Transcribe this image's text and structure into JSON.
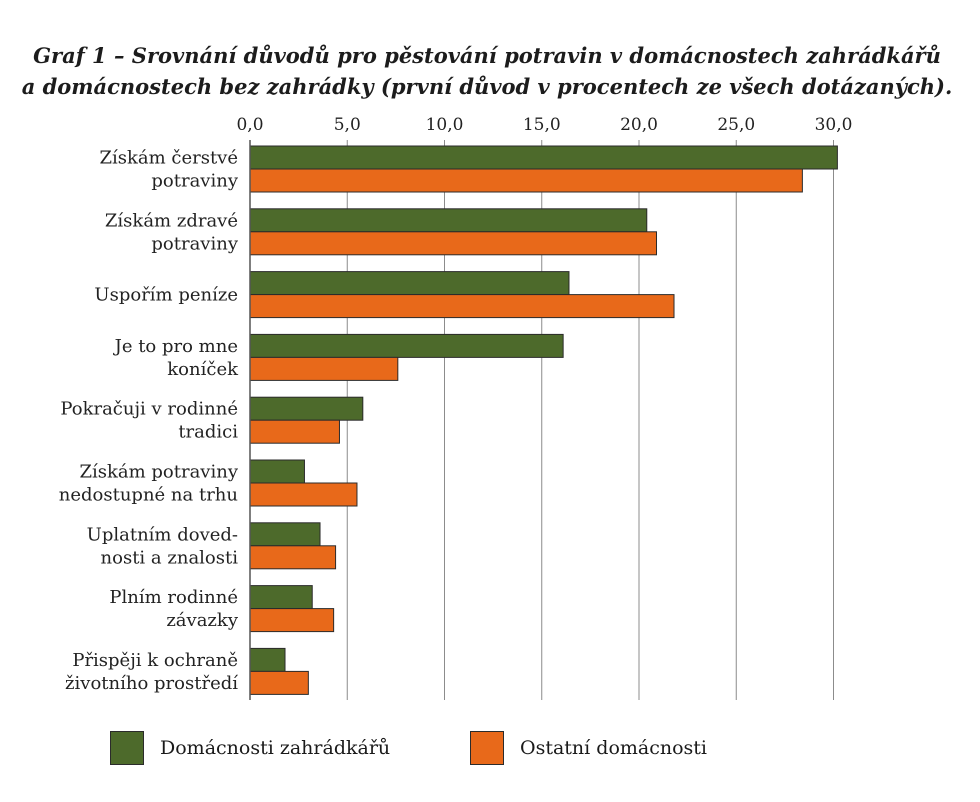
{
  "title": {
    "line1": "Graf 1 – Srovnání důvodů pro pěstování potravin v domácnostech zahrádkářů",
    "line2": "a domácnostech bez zahrádky (první důvod v procentech ze všech dotázaných)."
  },
  "colors": {
    "series1": "#4d6a2b",
    "series2": "#e8691a",
    "grid": "#8c8c8c",
    "axis": "#555555"
  },
  "chart_data": {
    "type": "bar",
    "orientation": "horizontal",
    "xlim": [
      0,
      30
    ],
    "ticks": [
      "0,0",
      "5,0",
      "10,0",
      "15,0",
      "20,0",
      "25,0",
      "30,0"
    ],
    "tick_values": [
      0,
      5,
      10,
      15,
      20,
      25,
      30
    ],
    "grid": true,
    "legend_position": "bottom",
    "categories": [
      [
        "Získám čerstvé",
        "potraviny"
      ],
      [
        "Získám zdravé",
        "potraviny"
      ],
      [
        "Uspořím peníze"
      ],
      [
        "Je to pro mne",
        "koníček"
      ],
      [
        "Pokračuji v rodinné",
        "tradici"
      ],
      [
        "Získám potraviny",
        "nedostupné na trhu"
      ],
      [
        "Uplatním doved-",
        "nosti a znalosti"
      ],
      [
        "Plním rodinné",
        "závazky"
      ],
      [
        "Přispěji k ochraně",
        "životního prostředí"
      ]
    ],
    "series": [
      {
        "name": "Domácnosti zahrádkářů",
        "values": [
          30.2,
          20.4,
          16.4,
          16.1,
          5.8,
          2.8,
          3.6,
          3.2,
          1.8
        ]
      },
      {
        "name": "Ostatní domácnosti",
        "values": [
          28.4,
          20.9,
          21.8,
          7.6,
          4.6,
          5.5,
          4.4,
          4.3,
          3.0
        ]
      }
    ]
  }
}
